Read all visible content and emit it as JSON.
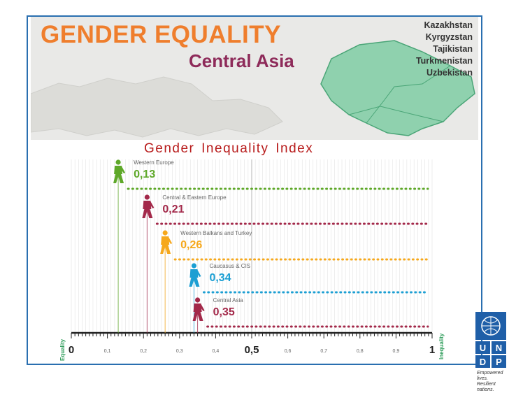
{
  "banner": {
    "title": "GENDER EQUALITY",
    "subtitle": "Central Asia",
    "countries": [
      "Kazakhstan",
      "Kyrgyzstan",
      "Tajikistan",
      "Turkmenistan",
      "Uzbekistan"
    ]
  },
  "chart_data": {
    "type": "scatter",
    "title": "Gender  Inequality  Index",
    "xlim": [
      0,
      1
    ],
    "x_ticks": [
      "0",
      "0,1",
      "0,2",
      "0,3",
      "0,4",
      "0,5",
      "0,6",
      "0,7",
      "0,8",
      "0,9",
      "1"
    ],
    "x_tick_values": [
      0,
      0.1,
      0.2,
      0.3,
      0.4,
      0.5,
      0.6,
      0.7,
      0.8,
      0.9,
      1
    ],
    "left_axis_label": "Equality",
    "right_axis_label": "Inequality",
    "points": [
      {
        "region": "Western Europe",
        "x": 0.13,
        "value_label": "0,13",
        "color": "#5ea829"
      },
      {
        "region": "Central & Eastern Europe",
        "x": 0.21,
        "value_label": "0,21",
        "color": "#a3294a"
      },
      {
        "region": "Western Balkans and Turkey",
        "x": 0.26,
        "value_label": "0,26",
        "color": "#f6a81c"
      },
      {
        "region": "Caucasus & CIS",
        "x": 0.34,
        "value_label": "0,34",
        "color": "#1c9fd3"
      },
      {
        "region": "Central Asia",
        "x": 0.35,
        "value_label": "0,35",
        "color": "#a3294a"
      }
    ],
    "grid": true
  },
  "logo": {
    "letters": [
      "U",
      "N",
      "D",
      "P"
    ],
    "tagline_line1": "Empowered lives.",
    "tagline_line2": "Resilient nations.",
    "color": "#1f5fa8"
  }
}
